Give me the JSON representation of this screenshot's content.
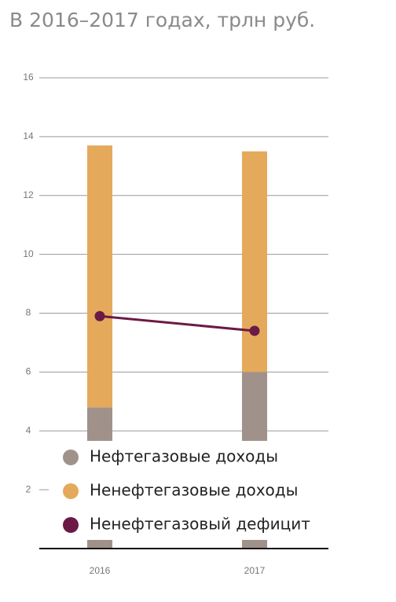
{
  "chart_data": {
    "type": "bar",
    "stacked": true,
    "title": "В 2016–2017 годах, трлн руб.",
    "categories": [
      "2016",
      "2017"
    ],
    "series": [
      {
        "name": "Нефтегазовые доходы",
        "color": "#a0928a",
        "type": "bar",
        "values": [
          4.8,
          6.0
        ]
      },
      {
        "name": "Ненефтегазовые доходы",
        "color": "#e5a95b",
        "type": "bar",
        "values": [
          8.9,
          7.5
        ]
      },
      {
        "name": "Ненефтегазовый дефицит",
        "color": "#6b1a45",
        "type": "line",
        "values": [
          7.9,
          7.4
        ]
      }
    ],
    "ylim": [
      0,
      16
    ],
    "yticks": [
      2,
      4,
      6,
      8,
      10,
      12,
      14,
      16
    ],
    "grid": true
  }
}
